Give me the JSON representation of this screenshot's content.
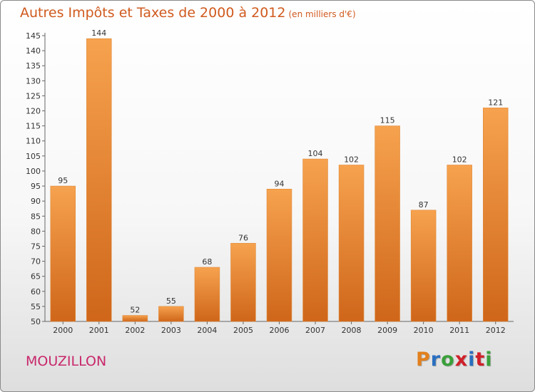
{
  "title": "Autres Impôts et Taxes de 2000 à 2012",
  "subtitle": "(en milliers d'€)",
  "city": "MOUZILLON",
  "logo": {
    "text": "Proxiti",
    "letter_colors": [
      "#e2801d",
      "#2a6fc0",
      "#3aa03a",
      "#d0202a",
      "#2a6fc0",
      "#d0202a",
      "#3aa03a"
    ]
  },
  "colors": {
    "bar_light": "#f6a24e",
    "bar_dark": "#cf661a",
    "title": "#d05a1e",
    "city": "#c8286b",
    "axis": "#666666",
    "text": "#333333"
  },
  "chart_data": {
    "type": "bar",
    "categories": [
      "2000",
      "2001",
      "2002",
      "2003",
      "2004",
      "2005",
      "2006",
      "2007",
      "2008",
      "2009",
      "2010",
      "2011",
      "2012"
    ],
    "values": [
      95,
      144,
      52,
      55,
      68,
      76,
      94,
      104,
      102,
      115,
      87,
      102,
      121
    ],
    "ylim": [
      50,
      145
    ],
    "ytick_step": 5,
    "grid": false
  }
}
